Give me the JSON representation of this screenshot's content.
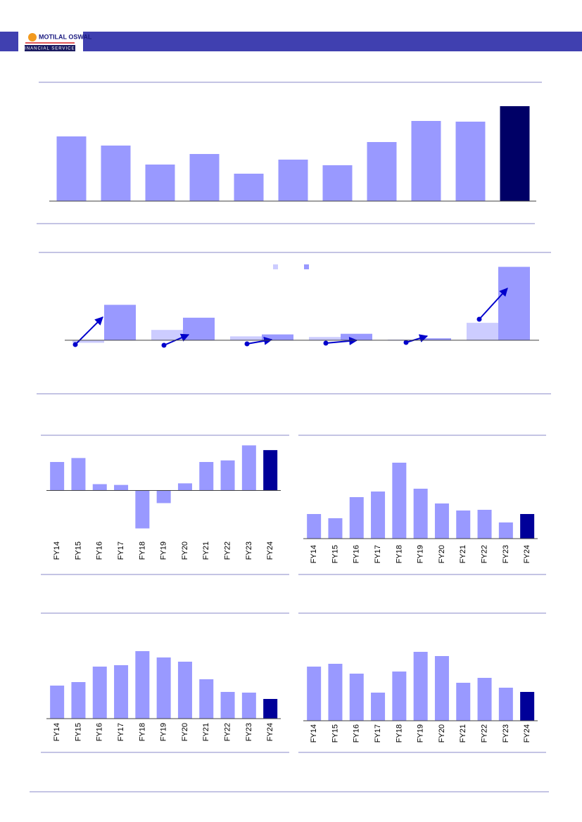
{
  "header": {
    "brand": "MOTILAL OSWAL",
    "sub": "FINANCIAL SERVICES"
  },
  "chart_data": [
    {
      "type": "bar",
      "values": [
        92,
        79,
        52,
        67,
        39,
        59,
        51,
        84,
        114,
        113,
        135
      ],
      "colors": [
        "#9999ff",
        "#9999ff",
        "#9999ff",
        "#9999ff",
        "#9999ff",
        "#9999ff",
        "#9999ff",
        "#9999ff",
        "#9999ff",
        "#9999ff",
        "#000066"
      ],
      "ylim": [
        0,
        140
      ]
    },
    {
      "type": "grouped_bar",
      "series": [
        {
          "color": "#ccccff",
          "values": [
            -4,
            16,
            6,
            5,
            1,
            27
          ]
        },
        {
          "color": "#9999ff",
          "values": [
            55,
            35,
            9,
            10,
            3,
            114
          ]
        }
      ],
      "ylim": [
        -10,
        120
      ]
    },
    {
      "type": "bar",
      "categories": [
        "FY14",
        "FY15",
        "FY16",
        "FY17",
        "FY18",
        "FY19",
        "FY20",
        "FY21",
        "FY22",
        "FY23",
        "FY24"
      ],
      "values": [
        36,
        41,
        8,
        7,
        -48,
        -16,
        9,
        36,
        38,
        57,
        51
      ],
      "colors": [
        "#9999ff",
        "#9999ff",
        "#9999ff",
        "#9999ff",
        "#9999ff",
        "#9999ff",
        "#9999ff",
        "#9999ff",
        "#9999ff",
        "#9999ff",
        "#000099"
      ],
      "ylim": [
        -60,
        60
      ]
    },
    {
      "type": "bar",
      "categories": [
        "FY14",
        "FY15",
        "FY16",
        "FY17",
        "FY18",
        "FY19",
        "FY20",
        "FY21",
        "FY22",
        "FY23",
        "FY24"
      ],
      "values": [
        35,
        29,
        59,
        67,
        108,
        71,
        50,
        40,
        41,
        23,
        35
      ],
      "colors": [
        "#9999ff",
        "#9999ff",
        "#9999ff",
        "#9999ff",
        "#9999ff",
        "#9999ff",
        "#9999ff",
        "#9999ff",
        "#9999ff",
        "#9999ff",
        "#000099"
      ],
      "ylim": [
        0,
        120
      ]
    },
    {
      "type": "bar",
      "categories": [
        "FY14",
        "FY15",
        "FY16",
        "FY17",
        "FY18",
        "FY19",
        "FY20",
        "FY21",
        "FY22",
        "FY23",
        "FY24"
      ],
      "values": [
        47,
        52,
        74,
        76,
        96,
        87,
        81,
        56,
        38,
        37,
        28
      ],
      "colors": [
        "#9999ff",
        "#9999ff",
        "#9999ff",
        "#9999ff",
        "#9999ff",
        "#9999ff",
        "#9999ff",
        "#9999ff",
        "#9999ff",
        "#9999ff",
        "#000099"
      ],
      "ylim": [
        0,
        100
      ]
    },
    {
      "type": "bar",
      "categories": [
        "FY14",
        "FY15",
        "FY16",
        "FY17",
        "FY18",
        "FY19",
        "FY20",
        "FY21",
        "FY22",
        "FY23",
        "FY24"
      ],
      "values": [
        77,
        81,
        67,
        40,
        70,
        98,
        92,
        54,
        61,
        47,
        41
      ],
      "colors": [
        "#9999ff",
        "#9999ff",
        "#9999ff",
        "#9999ff",
        "#9999ff",
        "#9999ff",
        "#9999ff",
        "#9999ff",
        "#9999ff",
        "#9999ff",
        "#000099"
      ],
      "ylim": [
        0,
        100
      ]
    }
  ]
}
